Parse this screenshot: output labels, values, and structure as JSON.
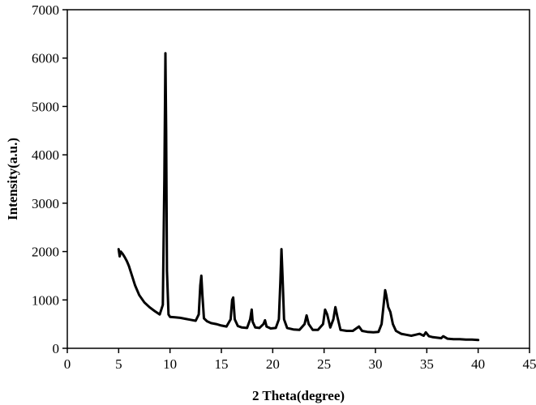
{
  "chart_data": {
    "type": "line",
    "title": "",
    "xlabel": "2 Theta(degree)",
    "ylabel": "Intensity(a.u.)",
    "xlim": [
      0,
      45
    ],
    "ylim": [
      0,
      7000
    ],
    "xticks": [
      0,
      5,
      10,
      15,
      20,
      25,
      30,
      35,
      40,
      45
    ],
    "yticks": [
      0,
      1000,
      2000,
      3000,
      4000,
      5000,
      6000,
      7000
    ],
    "grid": false,
    "legend": "none",
    "line_color": "#000000",
    "series": [
      {
        "x": [
          5.0,
          5.1,
          5.2,
          5.4,
          5.6,
          5.8,
          6.0,
          6.3,
          6.6,
          7.0,
          7.5,
          8.0,
          8.5,
          9.0,
          9.3,
          9.45,
          9.55,
          9.62,
          9.7,
          9.85,
          10.0,
          10.5,
          11.0,
          11.5,
          12.0,
          12.5,
          12.8,
          12.95,
          13.05,
          13.15,
          13.3,
          13.6,
          14.0,
          14.5,
          15.0,
          15.5,
          15.9,
          16.05,
          16.15,
          16.3,
          16.6,
          17.0,
          17.5,
          17.8,
          17.95,
          18.05,
          18.3,
          18.7,
          19.1,
          19.25,
          19.4,
          19.8,
          20.3,
          20.6,
          20.75,
          20.85,
          20.95,
          21.1,
          21.4,
          22.0,
          22.6,
          23.1,
          23.3,
          23.5,
          23.9,
          24.4,
          24.9,
          25.1,
          25.3,
          25.6,
          25.9,
          26.1,
          26.3,
          26.6,
          27.2,
          27.8,
          28.2,
          28.4,
          28.7,
          29.2,
          29.8,
          30.3,
          30.6,
          30.8,
          30.95,
          31.05,
          31.25,
          31.45,
          31.7,
          32.0,
          32.5,
          33.0,
          33.5,
          33.9,
          34.3,
          34.7,
          34.9,
          35.2,
          35.6,
          36.0,
          36.4,
          36.6,
          37.0,
          37.6,
          38.2,
          38.8,
          39.4,
          40.0
        ],
        "y": [
          2050,
          1900,
          2000,
          1950,
          1880,
          1800,
          1700,
          1500,
          1300,
          1100,
          950,
          850,
          770,
          700,
          900,
          3500,
          6100,
          4500,
          1600,
          700,
          650,
          640,
          630,
          610,
          590,
          570,
          700,
          1300,
          1500,
          1100,
          620,
          560,
          520,
          500,
          470,
          450,
          600,
          1000,
          1050,
          600,
          460,
          430,
          420,
          600,
          800,
          550,
          430,
          420,
          500,
          580,
          450,
          410,
          420,
          600,
          1400,
          2050,
          1500,
          600,
          420,
          390,
          380,
          500,
          680,
          500,
          380,
          380,
          500,
          800,
          700,
          430,
          600,
          850,
          650,
          380,
          360,
          360,
          420,
          450,
          360,
          340,
          330,
          340,
          500,
          900,
          1200,
          1100,
          850,
          750,
          500,
          360,
          300,
          280,
          260,
          280,
          300,
          260,
          330,
          250,
          230,
          220,
          210,
          250,
          200,
          190,
          190,
          180,
          180,
          170
        ]
      }
    ]
  }
}
